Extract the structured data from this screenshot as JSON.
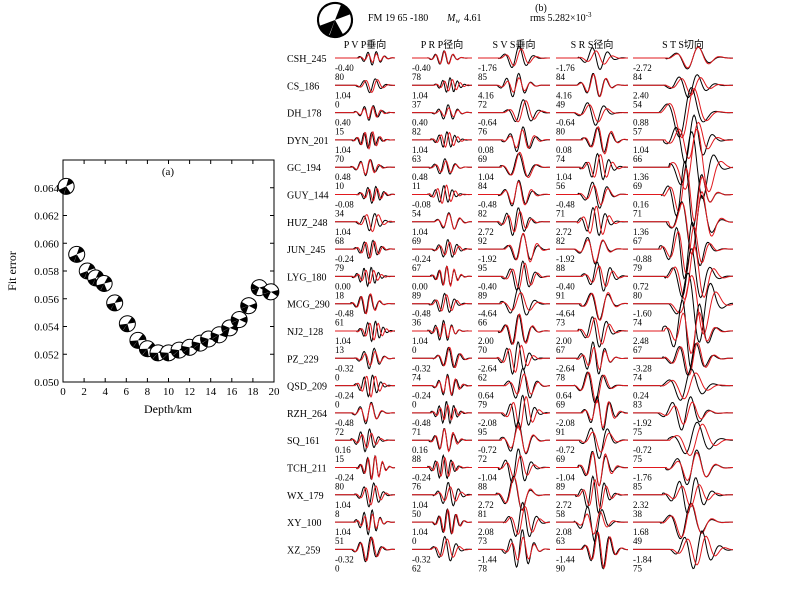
{
  "chart_data": [
    {
      "type": "scatter",
      "panel_label": "(a)",
      "xlabel": "Depth/km",
      "ylabel": "Fit error",
      "xlim": [
        0,
        20
      ],
      "ylim": [
        0.05,
        0.066
      ],
      "xticks": [
        0,
        2,
        4,
        6,
        8,
        10,
        12,
        14,
        16,
        18,
        20
      ],
      "yticks": [
        0.05,
        0.052,
        0.054,
        0.056,
        0.058,
        0.06,
        0.062,
        0.064
      ],
      "ytick_labels": [
        "0.050",
        "0.052",
        "0.054",
        "0.056",
        "0.058",
        "0.060",
        "0.062",
        "0.064"
      ],
      "marker": "beachball",
      "x": [
        0.3,
        1.3,
        2.3,
        3.1,
        3.9,
        4.9,
        6.1,
        7.1,
        8.0,
        9.0,
        10.0,
        11.0,
        12.0,
        13.0,
        13.8,
        14.8,
        15.8,
        16.7,
        17.6,
        18.6,
        19.7
      ],
      "y": [
        0.0641,
        0.0592,
        0.058,
        0.0575,
        0.0571,
        0.0557,
        0.0542,
        0.053,
        0.0524,
        0.0521,
        0.0521,
        0.0523,
        0.0525,
        0.0528,
        0.0531,
        0.0534,
        0.0539,
        0.0545,
        0.0555,
        0.0568,
        0.0565
      ]
    },
    {
      "type": "waveform-comparison",
      "panel_label": "(b)",
      "header": {
        "fm_text": "FM 19  65  -180",
        "mw_label": "M",
        "mw_subscript": "w",
        "mw_value": "4.61",
        "rms_text": "rms 5.282×10",
        "rms_exponent": "-3"
      },
      "colors": {
        "observed": "#000000",
        "synthetic": "#e0191e"
      },
      "columns": [
        {
          "id": "PV",
          "label": "P V    P垂向"
        },
        {
          "id": "PR",
          "label": "P R    P径向"
        },
        {
          "id": "SV",
          "label": "S V   S垂向"
        },
        {
          "id": "SR",
          "label": "S R   S径向"
        },
        {
          "id": "ST",
          "label": "S T   S切向"
        }
      ],
      "stations": [
        {
          "name": "CSH_245",
          "shift": [
            "-0.40",
            "-0.40",
            "-1.76",
            "-1.76",
            "-2.72"
          ],
          "cc": [
            "80",
            "78",
            "85",
            "84",
            "84"
          ]
        },
        {
          "name": "CS_186",
          "shift": [
            "1.04",
            "1.04",
            "4.16",
            "4.16",
            "2.40"
          ],
          "cc": [
            "0",
            "37",
            "72",
            "49",
            "54"
          ]
        },
        {
          "name": "DH_178",
          "shift": [
            "0.40",
            "0.40",
            "-0.64",
            "-0.64",
            "0.88"
          ],
          "cc": [
            "15",
            "82",
            "76",
            "80",
            "57"
          ]
        },
        {
          "name": "DYN_201",
          "shift": [
            "1.04",
            "1.04",
            "0.08",
            "0.08",
            "1.04"
          ],
          "cc": [
            "70",
            "63",
            "69",
            "74",
            "66"
          ]
        },
        {
          "name": "GC_194",
          "shift": [
            "0.48",
            "0.48",
            "1.04",
            "1.04",
            "1.36"
          ],
          "cc": [
            "10",
            "11",
            "84",
            "56",
            "69"
          ]
        },
        {
          "name": "GUY_144",
          "shift": [
            "-0.08",
            "-0.08",
            "-0.48",
            "-0.48",
            "0.16"
          ],
          "cc": [
            "34",
            "54",
            "82",
            "71",
            "71"
          ]
        },
        {
          "name": "HUZ_248",
          "shift": [
            "1.04",
            "1.04",
            "2.72",
            "2.72",
            "1.36"
          ],
          "cc": [
            "68",
            "69",
            "92",
            "82",
            "67"
          ]
        },
        {
          "name": "JUN_245",
          "shift": [
            "-0.24",
            "-0.24",
            "-1.92",
            "-1.92",
            "-0.88"
          ],
          "cc": [
            "79",
            "67",
            "95",
            "88",
            "79"
          ]
        },
        {
          "name": "LYG_180",
          "shift": [
            "0.00",
            "0.00",
            "-0.40",
            "-0.40",
            "0.72"
          ],
          "cc": [
            "18",
            "89",
            "89",
            "91",
            "80"
          ]
        },
        {
          "name": "MCG_290",
          "shift": [
            "-0.48",
            "-0.48",
            "-4.64",
            "-4.64",
            "-1.60"
          ],
          "cc": [
            "61",
            "36",
            "66",
            "73",
            "74"
          ]
        },
        {
          "name": "NJ2_128",
          "shift": [
            "1.04",
            "1.04",
            "2.00",
            "2.00",
            "2.48"
          ],
          "cc": [
            "13",
            "0",
            "70",
            "67",
            "67"
          ]
        },
        {
          "name": "PZ_229",
          "shift": [
            "-0.32",
            "-0.32",
            "-2.64",
            "-2.64",
            "-3.28"
          ],
          "cc": [
            "0",
            "74",
            "62",
            "78",
            "74"
          ]
        },
        {
          "name": "QSD_209",
          "shift": [
            "-0.24",
            "-0.24",
            "0.64",
            "0.64",
            "0.24"
          ],
          "cc": [
            "0",
            "0",
            "79",
            "69",
            "83"
          ]
        },
        {
          "name": "RZH_264",
          "shift": [
            "-0.48",
            "-0.48",
            "-2.08",
            "-2.08",
            "-1.92"
          ],
          "cc": [
            "72",
            "71",
            "95",
            "91",
            "75"
          ]
        },
        {
          "name": "SQ_161",
          "shift": [
            "0.16",
            "0.16",
            "-0.72",
            "-0.72",
            "-0.72"
          ],
          "cc": [
            "15",
            "88",
            "72",
            "69",
            "75"
          ]
        },
        {
          "name": "TCH_211",
          "shift": [
            "-0.24",
            "-0.24",
            "-1.04",
            "-1.04",
            "-1.76"
          ],
          "cc": [
            "80",
            "76",
            "88",
            "89",
            "85"
          ]
        },
        {
          "name": "WX_179",
          "shift": [
            "1.04",
            "1.04",
            "2.72",
            "2.72",
            "2.32"
          ],
          "cc": [
            "8",
            "50",
            "81",
            "58",
            "38"
          ]
        },
        {
          "name": "XY_100",
          "shift": [
            "1.04",
            "1.04",
            "2.08",
            "2.08",
            "1.68"
          ],
          "cc": [
            "51",
            "0",
            "73",
            "63",
            "49"
          ]
        },
        {
          "name": "XZ_259",
          "shift": [
            "-0.32",
            "-0.32",
            "-1.44",
            "-1.44",
            "-1.84"
          ],
          "cc": [
            "0",
            "62",
            "78",
            "90",
            "75"
          ]
        }
      ]
    }
  ]
}
